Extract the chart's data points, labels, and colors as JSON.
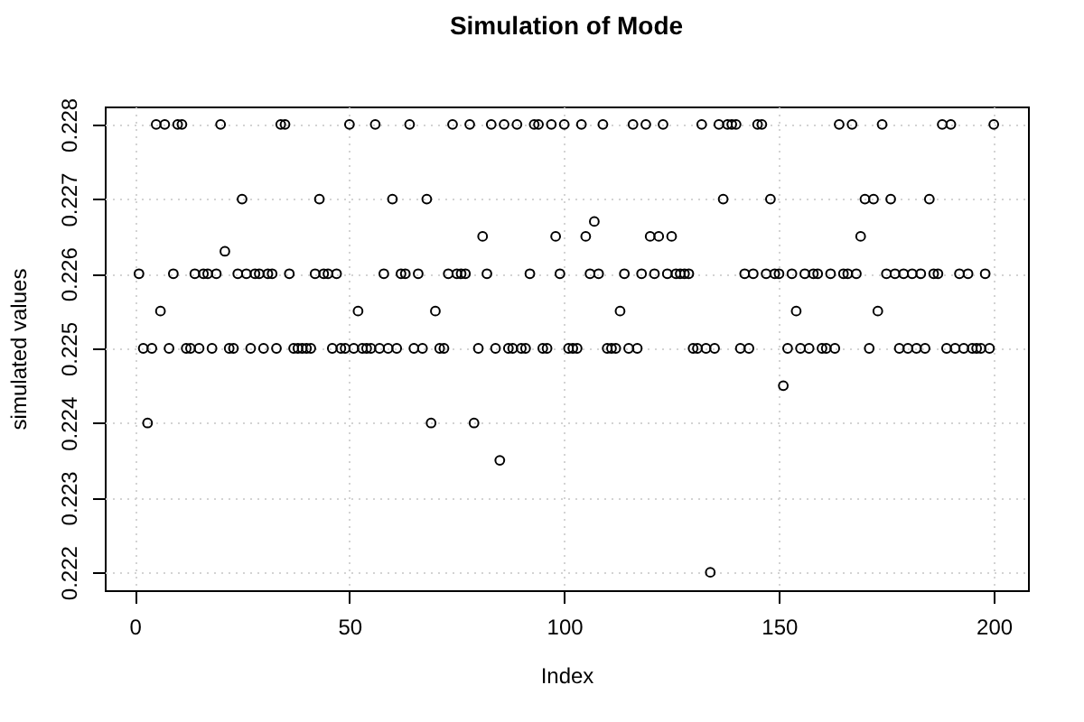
{
  "chart_data": {
    "type": "scatter",
    "title": "Simulation of Mode",
    "xlabel": "Index",
    "ylabel": "simulated values",
    "x": [
      1,
      2,
      3,
      4,
      5,
      6,
      7,
      8,
      9,
      10,
      11,
      12,
      13,
      14,
      15,
      16,
      17,
      18,
      19,
      20,
      21,
      22,
      23,
      24,
      25,
      26,
      27,
      28,
      29,
      30,
      31,
      32,
      33,
      34,
      35,
      36,
      37,
      38,
      39,
      40,
      41,
      42,
      43,
      44,
      45,
      46,
      47,
      48,
      49,
      50,
      51,
      52,
      53,
      54,
      55,
      56,
      57,
      58,
      59,
      60,
      61,
      62,
      63,
      64,
      65,
      66,
      67,
      68,
      69,
      70,
      71,
      72,
      73,
      74,
      75,
      76,
      77,
      78,
      79,
      80,
      81,
      82,
      83,
      84,
      85,
      86,
      87,
      88,
      89,
      90,
      91,
      92,
      93,
      94,
      95,
      96,
      97,
      98,
      99,
      100,
      101,
      102,
      103,
      104,
      105,
      106,
      107,
      108,
      109,
      110,
      111,
      112,
      113,
      114,
      115,
      116,
      117,
      118,
      119,
      120,
      121,
      122,
      123,
      124,
      125,
      126,
      127,
      128,
      129,
      130,
      131,
      132,
      133,
      134,
      135,
      136,
      137,
      138,
      139,
      140,
      141,
      142,
      143,
      144,
      145,
      146,
      147,
      148,
      149,
      150,
      151,
      152,
      153,
      154,
      155,
      156,
      157,
      158,
      159,
      160,
      161,
      162,
      163,
      164,
      165,
      166,
      167,
      168,
      169,
      170,
      171,
      172,
      173,
      174,
      175,
      176,
      177,
      178,
      179,
      180,
      181,
      182,
      183,
      184,
      185,
      186,
      187,
      188,
      189,
      190,
      191,
      192,
      193,
      194,
      195,
      196,
      197,
      198,
      199,
      200
    ],
    "values": [
      0.226,
      0.225,
      0.224,
      0.225,
      0.228,
      0.2255,
      0.228,
      0.225,
      0.226,
      0.228,
      0.228,
      0.225,
      0.225,
      0.226,
      0.225,
      0.226,
      0.226,
      0.225,
      0.226,
      0.228,
      0.2263,
      0.225,
      0.225,
      0.226,
      0.227,
      0.226,
      0.225,
      0.226,
      0.226,
      0.225,
      0.226,
      0.226,
      0.225,
      0.228,
      0.228,
      0.226,
      0.225,
      0.225,
      0.225,
      0.225,
      0.225,
      0.226,
      0.227,
      0.226,
      0.226,
      0.225,
      0.226,
      0.225,
      0.225,
      0.228,
      0.225,
      0.2255,
      0.225,
      0.225,
      0.225,
      0.228,
      0.225,
      0.226,
      0.225,
      0.227,
      0.225,
      0.226,
      0.226,
      0.228,
      0.225,
      0.226,
      0.225,
      0.227,
      0.224,
      0.2255,
      0.225,
      0.225,
      0.226,
      0.228,
      0.226,
      0.226,
      0.226,
      0.228,
      0.224,
      0.225,
      0.2265,
      0.226,
      0.228,
      0.225,
      0.2235,
      0.228,
      0.225,
      0.225,
      0.228,
      0.225,
      0.225,
      0.226,
      0.228,
      0.228,
      0.225,
      0.225,
      0.228,
      0.2265,
      0.226,
      0.228,
      0.225,
      0.225,
      0.225,
      0.228,
      0.2265,
      0.226,
      0.2267,
      0.226,
      0.228,
      0.225,
      0.225,
      0.225,
      0.2255,
      0.226,
      0.225,
      0.228,
      0.225,
      0.226,
      0.228,
      0.2265,
      0.226,
      0.2265,
      0.228,
      0.226,
      0.2265,
      0.226,
      0.226,
      0.226,
      0.226,
      0.225,
      0.225,
      0.228,
      0.225,
      0.222,
      0.225,
      0.228,
      0.227,
      0.228,
      0.228,
      0.228,
      0.225,
      0.226,
      0.225,
      0.226,
      0.228,
      0.228,
      0.226,
      0.227,
      0.226,
      0.226,
      0.2245,
      0.225,
      0.226,
      0.2255,
      0.225,
      0.226,
      0.225,
      0.226,
      0.226,
      0.225,
      0.225,
      0.226,
      0.225,
      0.228,
      0.226,
      0.226,
      0.228,
      0.226,
      0.2265,
      0.227,
      0.225,
      0.227,
      0.2255,
      0.228,
      0.226,
      0.227,
      0.226,
      0.225,
      0.226,
      0.225,
      0.226,
      0.225,
      0.226,
      0.225,
      0.227,
      0.226,
      0.226,
      0.228,
      0.225,
      0.228,
      0.225,
      0.226,
      0.225,
      0.226,
      0.225,
      0.225,
      0.225,
      0.226,
      0.225,
      0.228
    ],
    "color": "#000000",
    "marker": "circle",
    "grid": true,
    "xlim": [
      -6.96,
      207.96
    ],
    "ylim": [
      0.22176,
      0.22824
    ],
    "xticks": [
      0,
      50,
      100,
      150,
      200
    ],
    "yticks": [
      0.222,
      0.223,
      0.224,
      0.225,
      0.226,
      0.227,
      0.228
    ]
  }
}
